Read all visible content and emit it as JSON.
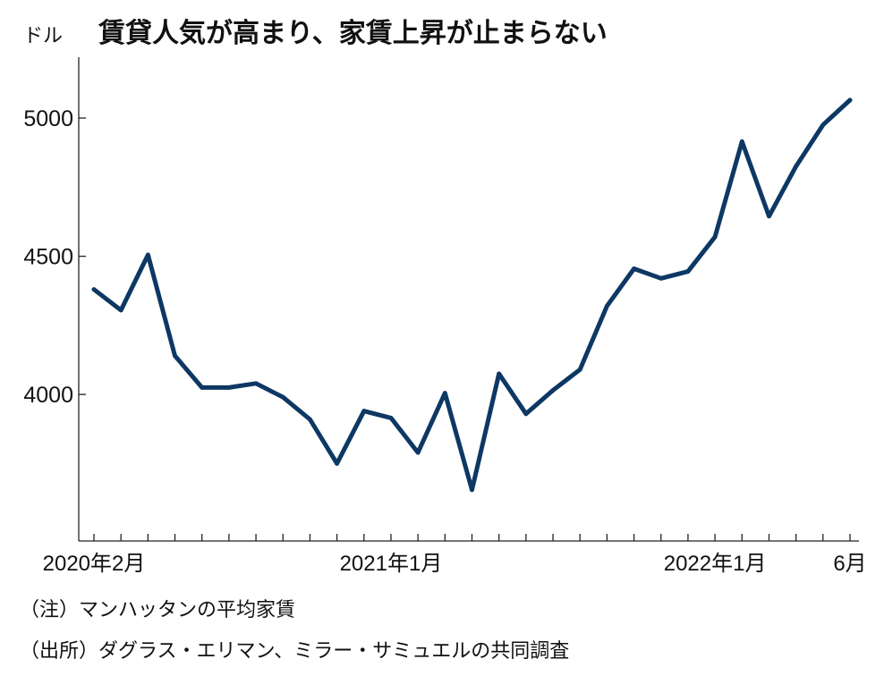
{
  "chart_data": {
    "type": "line",
    "title": "賃貸人気が高まり、家賃上昇が止まらない",
    "ylabel": "ドル",
    "ylim": [
      3470,
      5220
    ],
    "yticks": [
      4000,
      4500,
      5000
    ],
    "ytick_labels": [
      "4000",
      "4500",
      "5000"
    ],
    "x": [
      "2020-02",
      "2020-03",
      "2020-04",
      "2020-05",
      "2020-06",
      "2020-07",
      "2020-08",
      "2020-09",
      "2020-10",
      "2020-11",
      "2020-12",
      "2021-01",
      "2021-02",
      "2021-03",
      "2021-04",
      "2021-05",
      "2021-06",
      "2021-07",
      "2021-08",
      "2021-09",
      "2021-10",
      "2021-11",
      "2021-12",
      "2022-01",
      "2022-02",
      "2022-03",
      "2022-04",
      "2022-05",
      "2022-06"
    ],
    "x_tick_labels": [
      {
        "month": "2020-02",
        "label": "2020年2月"
      },
      {
        "month": "2021-01",
        "label": "2021年1月"
      },
      {
        "month": "2022-01",
        "label": "2022年1月"
      },
      {
        "month": "2022-06",
        "label": "6月"
      }
    ],
    "series": [
      {
        "values": [
          4380,
          4305,
          4505,
          4140,
          4025,
          4025,
          4040,
          3990,
          3910,
          3750,
          3940,
          3915,
          3790,
          4005,
          3655,
          4075,
          3930,
          4015,
          4090,
          4320,
          4455,
          4420,
          4445,
          4570,
          4915,
          4645,
          4825,
          4975,
          5065
        ],
        "color": "#0d3864"
      }
    ],
    "grid": false,
    "legend": "none"
  },
  "notes": {
    "note1": "（注）マンハッタンの平均家賃",
    "note2": "（出所）ダグラス・エリマン、ミラー・サミュエルの共同調査"
  }
}
